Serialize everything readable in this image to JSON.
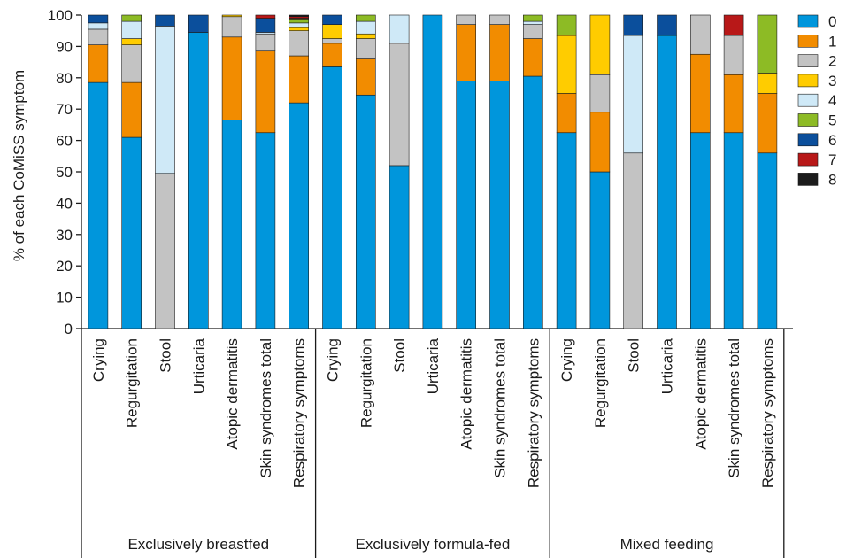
{
  "chart_data": {
    "type": "bar",
    "stacked": true,
    "title": "",
    "ylabel": "% of each CoMiSS symptom",
    "xlabel": "",
    "ylim": [
      0,
      100
    ],
    "yticks": [
      0,
      10,
      20,
      30,
      40,
      50,
      60,
      70,
      80,
      90,
      100
    ],
    "grid": false,
    "legend_position": "right",
    "legend_entries": [
      "0",
      "1",
      "2",
      "3",
      "4",
      "5",
      "6",
      "7",
      "8"
    ],
    "series_colors": [
      "#0096dc",
      "#f28c00",
      "#c3c3c3",
      "#ffcc00",
      "#cfe9f7",
      "#8dbb25",
      "#0b4f9c",
      "#b81818",
      "#1c1c1c"
    ],
    "groups": [
      {
        "name": "Exclusively breastfed",
        "categories": [
          {
            "name": "Crying",
            "values": [
              78.5,
              12,
              5,
              0,
              2,
              0,
              2.5,
              0,
              0
            ]
          },
          {
            "name": "Regurgitation",
            "values": [
              61,
              17.5,
              12,
              2,
              5.5,
              2,
              0,
              0,
              0
            ]
          },
          {
            "name": "Stool",
            "values": [
              0,
              0,
              49.5,
              0,
              47,
              0,
              3.5,
              0,
              0
            ]
          },
          {
            "name": "Urticaria",
            "values": [
              94.5,
              0,
              0,
              0,
              0,
              0,
              5.5,
              0,
              0
            ]
          },
          {
            "name": "Atopic dermatitis",
            "values": [
              66.5,
              26.5,
              6.5,
              0.5,
              0,
              0,
              0,
              0,
              0
            ]
          },
          {
            "name": "Skin syndromes total",
            "values": [
              62.5,
              26,
              5.5,
              0,
              0.5,
              0,
              4.5,
              1,
              0
            ]
          },
          {
            "name": "Respiratory symptoms",
            "values": [
              72,
              15,
              8,
              1,
              1.5,
              1,
              0.5,
              0.5,
              0.5
            ]
          }
        ]
      },
      {
        "name": "Exclusively formula-fed",
        "categories": [
          {
            "name": "Crying",
            "values": [
              83.5,
              7.5,
              1.5,
              4.5,
              0,
              0,
              3,
              0,
              0
            ]
          },
          {
            "name": "Regurgitation",
            "values": [
              74.5,
              11.5,
              6.5,
              1.5,
              4,
              2,
              0,
              0,
              0
            ]
          },
          {
            "name": "Stool",
            "values": [
              52,
              0,
              39,
              0,
              9,
              0,
              0,
              0,
              0
            ]
          },
          {
            "name": "Urticaria",
            "values": [
              100,
              0,
              0,
              0,
              0,
              0,
              0,
              0,
              0
            ]
          },
          {
            "name": "Atopic dermatitis",
            "values": [
              79,
              18,
              3,
              0,
              0,
              0,
              0,
              0,
              0
            ]
          },
          {
            "name": "Skin syndromes total",
            "values": [
              79,
              18,
              3,
              0,
              0,
              0,
              0,
              0,
              0
            ]
          },
          {
            "name": "Respiratory symptoms",
            "values": [
              80.5,
              12,
              4.5,
              0,
              1,
              2,
              0,
              0,
              0
            ]
          }
        ]
      },
      {
        "name": "Mixed feeding",
        "categories": [
          {
            "name": "Crying",
            "values": [
              62.5,
              12.5,
              0,
              18.5,
              0,
              6.5,
              0,
              0,
              0
            ]
          },
          {
            "name": "Regurgitation",
            "values": [
              50,
              19,
              12,
              19,
              0,
              0,
              0,
              0,
              0
            ]
          },
          {
            "name": "Stool",
            "values": [
              0,
              0,
              56,
              0,
              37.5,
              0,
              6.5,
              0,
              0
            ]
          },
          {
            "name": "Urticaria",
            "values": [
              93.5,
              0,
              0,
              0,
              0,
              0,
              6.5,
              0,
              0
            ]
          },
          {
            "name": "Atopic dermatitis",
            "values": [
              62.5,
              25,
              12.5,
              0,
              0,
              0,
              0,
              0,
              0
            ]
          },
          {
            "name": "Skin syndromes total",
            "values": [
              62.5,
              18.5,
              12.5,
              0,
              0,
              0,
              0,
              6.5,
              0
            ]
          },
          {
            "name": "Respiratory symptoms",
            "values": [
              56,
              19,
              0,
              6.5,
              0,
              18.5,
              0,
              0,
              0
            ]
          }
        ]
      }
    ]
  }
}
